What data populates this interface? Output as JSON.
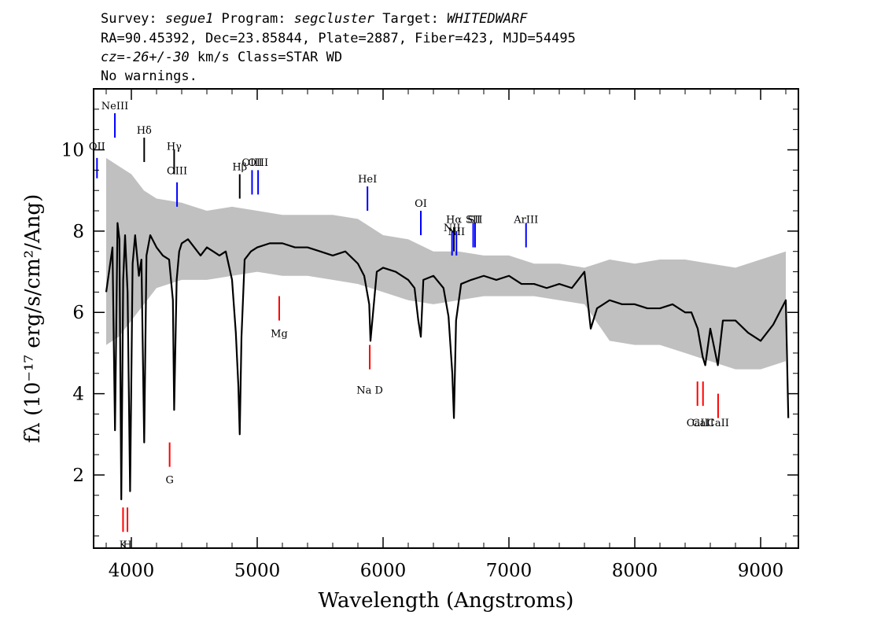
{
  "header": {
    "line1": {
      "survey_label": "Survey: ",
      "survey": "segue1",
      "program_label": " Program: ",
      "program": "segcluster",
      "target_label": " Target: ",
      "target": "WHITEDWARF"
    },
    "line2": "RA=90.45392, Dec=23.85844, Plate=2887, Fiber=423, MJD=54495",
    "line3": {
      "cz_label": "cz",
      "cz_value": "=-26+/-30",
      "rest": " km/s Class=STAR WD"
    },
    "line4": "No warnings."
  },
  "chart_data": {
    "type": "line",
    "title": "",
    "xlabel": "Wavelength (Angstroms)",
    "ylabel": "fλ (10⁻¹⁷ erg/s/cm²/Ang)",
    "xlim": [
      3700,
      9300
    ],
    "ylim": [
      0.2,
      11.5
    ],
    "x_ticks": [
      4000,
      5000,
      6000,
      7000,
      8000,
      9000
    ],
    "y_ticks": [
      2,
      4,
      6,
      8,
      10
    ],
    "grid": false,
    "legend": "none",
    "colors": {
      "flux": "#000000",
      "error_band": "#c0c0c0",
      "emission": "#0000ff",
      "absorption": "#ff0000",
      "balmer": "#000000"
    },
    "series": [
      {
        "name": "",
        "x": [
          3800,
          3850,
          3870,
          3890,
          3905,
          3920,
          3935,
          3950,
          3970,
          3990,
          4010,
          4030,
          4060,
          4080,
          4102,
          4120,
          4150,
          4200,
          4250,
          4300,
          4330,
          4340,
          4360,
          4380,
          4400,
          4450,
          4500,
          4550,
          4600,
          4650,
          4700,
          4750,
          4800,
          4830,
          4850,
          4861,
          4875,
          4900,
          4950,
          5000,
          5100,
          5200,
          5300,
          5400,
          5500,
          5600,
          5700,
          5800,
          5850,
          5890,
          5900,
          5950,
          6000,
          6100,
          6200,
          6250,
          6280,
          6300,
          6320,
          6400,
          6480,
          6520,
          6550,
          6563,
          6580,
          6620,
          6700,
          6800,
          6900,
          7000,
          7100,
          7200,
          7300,
          7400,
          7500,
          7550,
          7600,
          7650,
          7700,
          7800,
          7900,
          8000,
          8100,
          8200,
          8300,
          8400,
          8450,
          8500,
          8540,
          8560,
          8600,
          8660,
          8700,
          8800,
          8900,
          9000,
          9100,
          9150,
          9200,
          9220
        ],
        "values": [
          6.5,
          7.6,
          3.1,
          8.2,
          7.8,
          1.4,
          6.8,
          7.9,
          6.5,
          1.6,
          7.2,
          7.9,
          6.9,
          7.3,
          2.8,
          7.4,
          7.9,
          7.6,
          7.4,
          7.3,
          6.3,
          3.6,
          6.8,
          7.5,
          7.7,
          7.8,
          7.6,
          7.4,
          7.6,
          7.5,
          7.4,
          7.5,
          6.8,
          5.5,
          4.2,
          3.0,
          5.4,
          7.3,
          7.5,
          7.6,
          7.7,
          7.7,
          7.6,
          7.6,
          7.5,
          7.4,
          7.5,
          7.2,
          6.9,
          6.2,
          5.3,
          7.0,
          7.1,
          7.0,
          6.8,
          6.6,
          5.8,
          5.4,
          6.8,
          6.9,
          6.6,
          5.9,
          4.5,
          3.4,
          5.8,
          6.7,
          6.8,
          6.9,
          6.8,
          6.9,
          6.7,
          6.7,
          6.6,
          6.7,
          6.6,
          6.8,
          7.0,
          5.6,
          6.1,
          6.3,
          6.2,
          6.2,
          6.1,
          6.1,
          6.2,
          6.0,
          6.0,
          5.6,
          4.9,
          4.7,
          5.6,
          4.7,
          5.8,
          5.8,
          5.5,
          5.3,
          5.7,
          6.0,
          6.3,
          3.4
        ]
      }
    ],
    "error_band": {
      "x": [
        3800,
        3900,
        4000,
        4100,
        4200,
        4400,
        4600,
        4800,
        5000,
        5200,
        5400,
        5600,
        5800,
        6000,
        6200,
        6400,
        6600,
        6800,
        7000,
        7200,
        7400,
        7600,
        7800,
        8000,
        8200,
        8400,
        8600,
        8800,
        9000,
        9200
      ],
      "lower": [
        5.2,
        5.4,
        5.8,
        6.2,
        6.6,
        6.8,
        6.8,
        6.9,
        7.0,
        6.9,
        6.9,
        6.8,
        6.7,
        6.5,
        6.3,
        6.2,
        6.3,
        6.4,
        6.4,
        6.4,
        6.3,
        6.2,
        5.3,
        5.2,
        5.2,
        5.0,
        4.8,
        4.6,
        4.6,
        4.8
      ],
      "upper": [
        9.8,
        9.6,
        9.4,
        9.0,
        8.8,
        8.7,
        8.5,
        8.6,
        8.5,
        8.4,
        8.4,
        8.4,
        8.3,
        7.9,
        7.8,
        7.5,
        7.5,
        7.4,
        7.4,
        7.2,
        7.2,
        7.1,
        7.3,
        7.2,
        7.3,
        7.3,
        7.2,
        7.1,
        7.3,
        7.5
      ]
    },
    "annotations": [
      {
        "label": "OII",
        "x": 3727,
        "y_line": [
          9.3,
          9.8
        ],
        "y_text": 10.0,
        "kind": "emission"
      },
      {
        "label": "NeIII",
        "x": 3869,
        "y_line": [
          10.3,
          10.9
        ],
        "y_text": 11.0,
        "kind": "emission"
      },
      {
        "label": "Hδ",
        "x": 4102,
        "y_line": [
          9.7,
          10.3
        ],
        "y_text": 10.4,
        "kind": "balmer"
      },
      {
        "label": "Hγ",
        "x": 4340,
        "y_line": [
          9.4,
          10.0
        ],
        "y_text": 10.0,
        "kind": "balmer"
      },
      {
        "label": "OIII",
        "x": 4363,
        "y_line": [
          8.6,
          9.2
        ],
        "y_text": 9.4,
        "kind": "emission"
      },
      {
        "label": "Hβ",
        "x": 4861,
        "y_line": [
          8.8,
          9.4
        ],
        "y_text": 9.5,
        "kind": "balmer"
      },
      {
        "label": "OIII",
        "x": 4959,
        "y_line": [
          8.9,
          9.5
        ],
        "y_text": 9.6,
        "kind": "emission"
      },
      {
        "label": "OIII",
        "x": 5007,
        "y_line": [
          8.9,
          9.5
        ],
        "y_text": 9.6,
        "kind": "emission"
      },
      {
        "label": "HeI",
        "x": 5876,
        "y_line": [
          8.5,
          9.1
        ],
        "y_text": 9.2,
        "kind": "emission"
      },
      {
        "label": "OI",
        "x": 6300,
        "y_line": [
          7.9,
          8.5
        ],
        "y_text": 8.6,
        "kind": "emission"
      },
      {
        "label": "NII",
        "x": 6548,
        "y_line": [
          7.4,
          8.0
        ],
        "y_text": 8.0,
        "kind": "emission"
      },
      {
        "label": "Hα",
        "x": 6563,
        "y_line": [
          7.5,
          8.1
        ],
        "y_text": 8.2,
        "kind": "balmer"
      },
      {
        "label": "NII",
        "x": 6583,
        "y_line": [
          7.4,
          8.0
        ],
        "y_text": 7.9,
        "kind": "emission"
      },
      {
        "label": "SII",
        "x": 6716,
        "y_line": [
          7.6,
          8.2
        ],
        "y_text": 8.2,
        "kind": "emission"
      },
      {
        "label": "SII",
        "x": 6731,
        "y_line": [
          7.6,
          8.2
        ],
        "y_text": 8.2,
        "kind": "emission"
      },
      {
        "label": "ArIII",
        "x": 7136,
        "y_line": [
          7.6,
          8.2
        ],
        "y_text": 8.2,
        "kind": "emission"
      },
      {
        "label": "K",
        "x": 3934,
        "y_line": [
          0.6,
          1.2
        ],
        "y_text": 0.2,
        "kind": "absorption"
      },
      {
        "label": "H",
        "x": 3969,
        "y_line": [
          0.6,
          1.2
        ],
        "y_text": 0.2,
        "kind": "absorption"
      },
      {
        "label": "G",
        "x": 4304,
        "y_line": [
          2.2,
          2.8
        ],
        "y_text": 1.8,
        "kind": "absorption"
      },
      {
        "label": "Mg",
        "x": 5175,
        "y_line": [
          5.8,
          6.4
        ],
        "y_text": 5.4,
        "kind": "absorption"
      },
      {
        "label": "Na D",
        "x": 5894,
        "y_line": [
          4.6,
          5.2
        ],
        "y_text": 4.0,
        "kind": "absorption"
      },
      {
        "label": "CaII",
        "x": 8498,
        "y_line": [
          3.7,
          4.3
        ],
        "y_text": 3.2,
        "kind": "absorption"
      },
      {
        "label": "CaII",
        "x": 8542,
        "y_line": [
          3.7,
          4.3
        ],
        "y_text": 3.2,
        "kind": "absorption"
      },
      {
        "label": "CaII",
        "x": 8662,
        "y_line": [
          3.4,
          4.0
        ],
        "y_text": 3.2,
        "kind": "absorption"
      }
    ]
  }
}
